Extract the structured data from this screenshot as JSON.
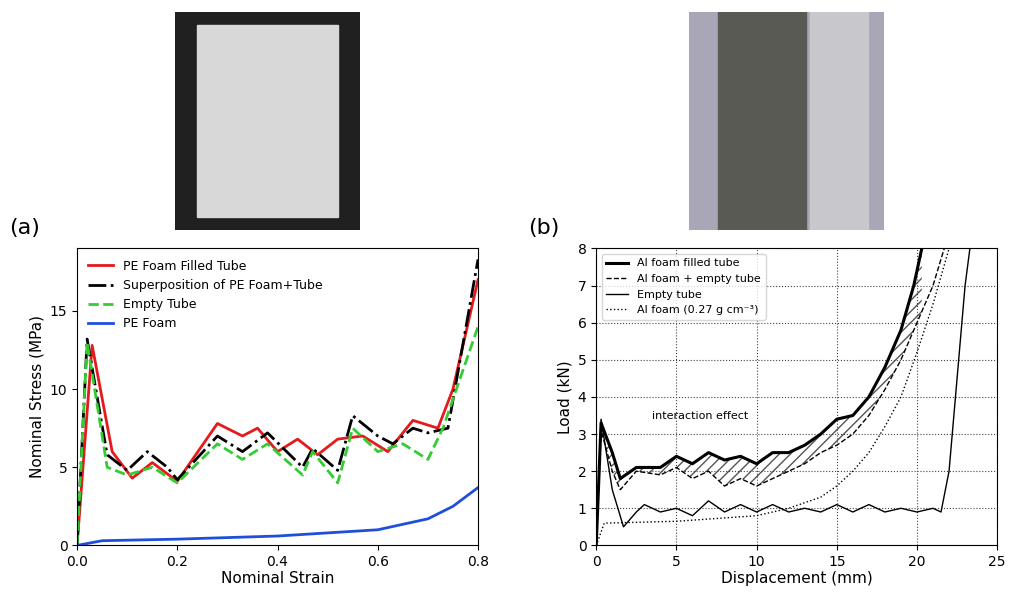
{
  "chart_data": [
    {
      "type": "line",
      "title": "(a)",
      "x_label": "Nominal Strain",
      "y_label": "Nominal Stress (MPa)",
      "xlim": [
        0,
        0.8
      ],
      "ylim": [
        0,
        19
      ],
      "xticks": [
        0.0,
        0.2,
        0.4,
        0.6,
        0.8
      ],
      "yticks": [
        0,
        5,
        10,
        15
      ],
      "grid": false,
      "legend": "upper left",
      "series": [
        {
          "name": "PE Foam Filled Tube",
          "color": "#e41a1c",
          "line_style": "solid",
          "x": [
            0,
            0.03,
            0.07,
            0.11,
            0.15,
            0.2,
            0.28,
            0.33,
            0.36,
            0.4,
            0.44,
            0.48,
            0.52,
            0.57,
            0.62,
            0.67,
            0.72,
            0.75,
            0.8
          ],
          "values": [
            0,
            12.8,
            6,
            4.3,
            5.3,
            4.1,
            7.8,
            7,
            7.5,
            6,
            6.8,
            5.8,
            6.8,
            7,
            6,
            8,
            7.5,
            10,
            17
          ]
        },
        {
          "name": "Superposition of PE Foam+Tube",
          "color": "#000000",
          "line_style": "dashdot",
          "x": [
            0,
            0.02,
            0.06,
            0.1,
            0.14,
            0.18,
            0.2,
            0.28,
            0.33,
            0.38,
            0.45,
            0.47,
            0.52,
            0.55,
            0.6,
            0.63,
            0.67,
            0.7,
            0.74,
            0.8
          ],
          "values": [
            0,
            13.2,
            5.8,
            4.8,
            6,
            5,
            4.2,
            7,
            6,
            7.2,
            5,
            6.2,
            4.8,
            8.3,
            7,
            6.5,
            7.5,
            7.2,
            7.5,
            18.3
          ]
        },
        {
          "name": "Empty Tube",
          "color": "#33cc33",
          "line_style": "dashed",
          "x": [
            0,
            0.02,
            0.06,
            0.1,
            0.15,
            0.2,
            0.28,
            0.33,
            0.38,
            0.45,
            0.47,
            0.52,
            0.55,
            0.6,
            0.65,
            0.7,
            0.73,
            0.8
          ],
          "values": [
            0,
            13,
            5,
            4.5,
            5,
            4,
            6.5,
            5.5,
            6.5,
            4.5,
            6,
            4,
            7.5,
            6,
            6.5,
            5.5,
            7.5,
            14
          ]
        },
        {
          "name": "PE Foam",
          "color": "#1f4fd8",
          "line_style": "solid",
          "x": [
            0,
            0.05,
            0.2,
            0.4,
            0.6,
            0.7,
            0.75,
            0.8
          ],
          "values": [
            0,
            0.3,
            0.4,
            0.6,
            1.0,
            1.7,
            2.5,
            3.7
          ]
        }
      ]
    },
    {
      "type": "line",
      "title": "(b)",
      "x_label": "Displacement (mm)",
      "y_label": "Load (kN)",
      "xlim": [
        0,
        25
      ],
      "ylim": [
        0,
        8
      ],
      "xticks": [
        0,
        5,
        10,
        15,
        20,
        25
      ],
      "yticks": [
        0,
        1,
        2,
        3,
        4,
        5,
        6,
        7,
        8
      ],
      "grid": true,
      "legend": "upper left",
      "annotations": [
        {
          "text": "interaction effect",
          "x": 3.5,
          "y": 3.4
        }
      ],
      "series": [
        {
          "name": "Al foam filled tube",
          "color": "#000000",
          "line_style": "solid",
          "x": [
            0,
            0.3,
            1,
            1.5,
            2.5,
            4,
            5,
            6,
            7,
            8,
            9,
            10,
            11,
            12,
            13,
            14,
            15,
            16,
            17,
            18,
            19,
            19.8,
            20.3
          ],
          "values": [
            0,
            3.3,
            2.5,
            1.8,
            2.1,
            2.1,
            2.4,
            2.2,
            2.5,
            2.3,
            2.4,
            2.2,
            2.5,
            2.5,
            2.7,
            3,
            3.4,
            3.5,
            4,
            4.8,
            5.8,
            7,
            8
          ]
        },
        {
          "name": "Al foam + empty tube",
          "color": "#000000",
          "line_style": "dashed",
          "x": [
            0,
            0.3,
            1,
            1.5,
            2.5,
            4,
            5,
            6,
            7,
            8,
            9,
            10,
            11,
            12,
            13,
            14,
            15,
            16,
            17,
            18,
            19,
            20,
            21,
            21.7
          ],
          "values": [
            0,
            3.1,
            2,
            1.5,
            2,
            1.9,
            2.1,
            1.8,
            2,
            1.6,
            1.8,
            1.6,
            1.8,
            2,
            2.2,
            2.5,
            2.7,
            3,
            3.5,
            4.2,
            5,
            6,
            7,
            8
          ]
        },
        {
          "name": "Empty tube",
          "color": "#000000",
          "line_style": "solid",
          "x": [
            0,
            0.3,
            1,
            1.7,
            2.5,
            3,
            4,
            5,
            6,
            7,
            8,
            9,
            10,
            11,
            12,
            13,
            14,
            15,
            16,
            17,
            18,
            19,
            20,
            21,
            21.5,
            22,
            22.5,
            23,
            23.3
          ],
          "values": [
            0,
            3.4,
            1.5,
            0.5,
            0.9,
            1.1,
            0.9,
            1,
            0.8,
            1.2,
            0.9,
            1.1,
            0.9,
            1.1,
            0.9,
            1,
            0.9,
            1.1,
            0.9,
            1.1,
            0.9,
            1,
            0.9,
            1,
            0.9,
            2,
            4.5,
            7,
            8
          ]
        },
        {
          "name": "Al foam (0.27 g cm⁻³)",
          "color": "#000000",
          "line_style": "dotted",
          "x": [
            0,
            0.5,
            5,
            10,
            12,
            14,
            15,
            16,
            17,
            18,
            19,
            20,
            21,
            22
          ],
          "values": [
            0,
            0.6,
            0.65,
            0.8,
            1,
            1.3,
            1.6,
            2,
            2.5,
            3.2,
            4,
            5.2,
            6.5,
            8
          ]
        }
      ]
    }
  ]
}
